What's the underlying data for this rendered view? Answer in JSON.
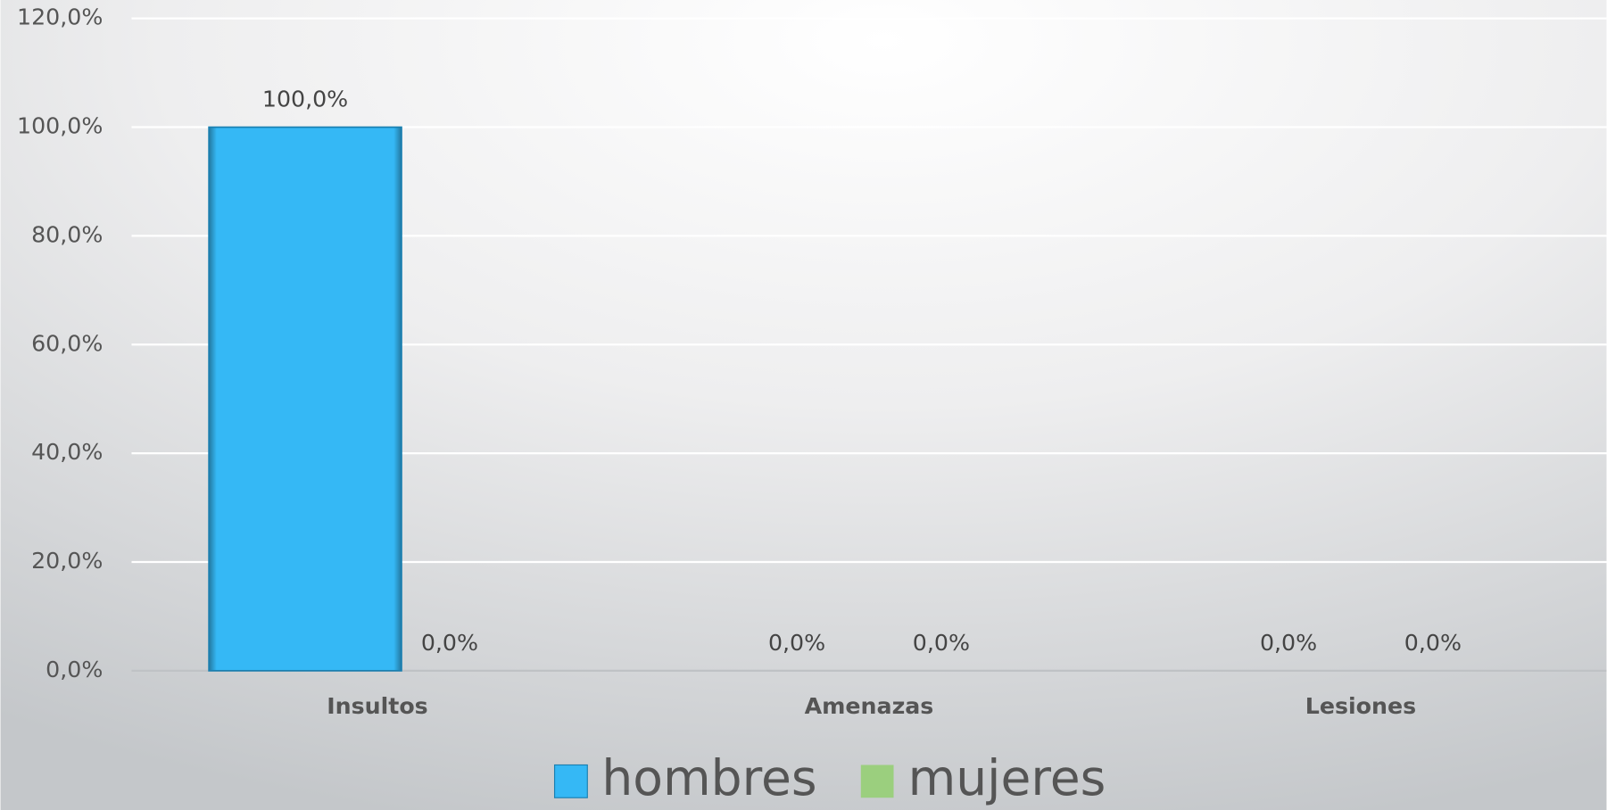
{
  "chart_data": {
    "type": "bar",
    "categories": [
      "Insultos",
      "Amenazas",
      "Lesiones"
    ],
    "series": [
      {
        "name": "hombres",
        "color": "#35b8f5",
        "values": [
          100,
          0,
          0
        ],
        "value_labels": [
          "100,0%",
          "0,0%",
          "0,0%"
        ]
      },
      {
        "name": "mujeres",
        "color": "#9bcf7e",
        "values": [
          0,
          0,
          0
        ],
        "value_labels": [
          "0,0%",
          "0,0%",
          "0,0%"
        ]
      }
    ],
    "ylim": [
      0,
      120
    ],
    "yticks": [
      {
        "value": 0,
        "label": "0,0%"
      },
      {
        "value": 20,
        "label": "20,0%"
      },
      {
        "value": 40,
        "label": "40,0%"
      },
      {
        "value": 60,
        "label": "60,0%"
      },
      {
        "value": 80,
        "label": "80,0%"
      },
      {
        "value": 100,
        "label": "100,0%"
      },
      {
        "value": 120,
        "label": "120,0%"
      }
    ],
    "grid": true,
    "legend": "bottom"
  }
}
